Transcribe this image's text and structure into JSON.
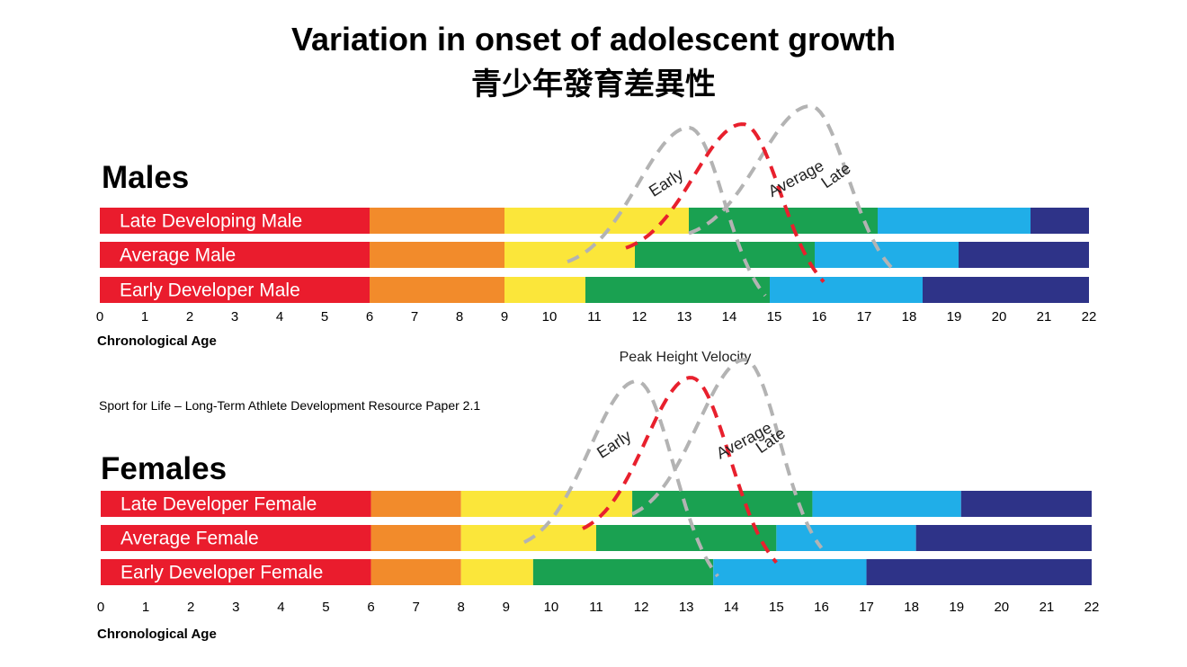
{
  "title": "Variation in onset of adolescent growth",
  "title_zh": "青少年發育差異性",
  "peak_label": "Peak Height Velocity",
  "source": "Sport for Life – Long-Term Athlete Development Resource Paper 2.1",
  "colors": {
    "stage_colors": [
      "#ea1c2d",
      "#f28b2b",
      "#fbe63a",
      "#1aa151",
      "#20aee8",
      "#2e3388"
    ],
    "average_curve": "#e8202d",
    "other_curves": "#b3b3b3"
  },
  "chart_data": [
    {
      "type": "bar",
      "stacked": "horizontal",
      "title": "Males",
      "xlabel": "Chronological Age",
      "xlim": [
        0,
        22
      ],
      "x_ticks": [
        "0",
        "1",
        "2",
        "3",
        "4",
        "5",
        "6",
        "7",
        "8",
        "9",
        "10",
        "11",
        "12",
        "13",
        "14",
        "15",
        "16",
        "17",
        "18",
        "19",
        "20",
        "21",
        "22"
      ],
      "rows": [
        {
          "label": "Late Developing Male",
          "boundaries": [
            0,
            6,
            9,
            13.1,
            17.3,
            20.7,
            22
          ]
        },
        {
          "label": "Average Male",
          "boundaries": [
            0,
            6,
            9,
            11.9,
            15.9,
            19.1,
            22
          ]
        },
        {
          "label": "Early Developer Male",
          "boundaries": [
            0,
            6,
            9,
            10.8,
            14.9,
            18.3,
            22
          ]
        }
      ],
      "curves": [
        {
          "name": "Early",
          "peak_age": 13.1,
          "start_age": 10.4,
          "end_age": 14.8
        },
        {
          "name": "Average",
          "peak_age": 14.3,
          "start_age": 11.7,
          "end_age": 16.1
        },
        {
          "name": "Late",
          "peak_age": 15.8,
          "start_age": 13.1,
          "end_age": 17.6
        }
      ]
    },
    {
      "type": "bar",
      "stacked": "horizontal",
      "title": "Females",
      "xlabel": "Chronological Age",
      "xlim": [
        0,
        22
      ],
      "x_ticks": [
        "0",
        "1",
        "2",
        "3",
        "4",
        "5",
        "6",
        "7",
        "8",
        "9",
        "10",
        "11",
        "12",
        "13",
        "14",
        "15",
        "16",
        "17",
        "18",
        "19",
        "20",
        "21",
        "22"
      ],
      "rows": [
        {
          "label": "Late Developer Female",
          "boundaries": [
            0,
            6,
            8,
            11.8,
            15.8,
            19.1,
            22
          ]
        },
        {
          "label": "Average Female",
          "boundaries": [
            0,
            6,
            8,
            11.0,
            15.0,
            18.1,
            22
          ]
        },
        {
          "label": "Early Developer Female",
          "boundaries": [
            0,
            6,
            8,
            9.6,
            13.6,
            17.0,
            22
          ]
        }
      ],
      "curves": [
        {
          "name": "Early",
          "peak_age": 11.9,
          "start_age": 9.4,
          "end_age": 13.7
        },
        {
          "name": "Average",
          "peak_age": 13.1,
          "start_age": 10.7,
          "end_age": 15.0
        },
        {
          "name": "Late",
          "peak_age": 14.3,
          "start_age": 11.8,
          "end_age": 16.0
        }
      ]
    }
  ]
}
